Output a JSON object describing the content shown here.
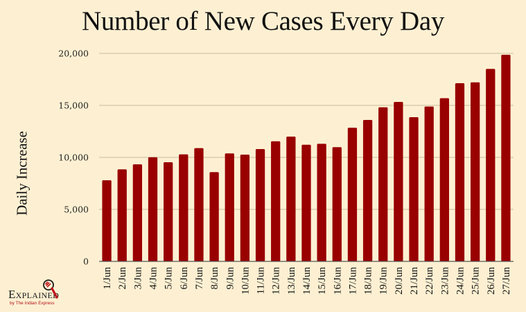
{
  "chart_data": {
    "type": "bar",
    "title": "Number of New Cases Every Day",
    "xlabel": "",
    "ylabel": "Daily Increase",
    "ylim": [
      0,
      20000
    ],
    "yticks": [
      0,
      5000,
      10000,
      15000,
      20000
    ],
    "ytick_labels": [
      "0",
      "5,000",
      "10,000",
      "15,000",
      "20,000"
    ],
    "grid": true,
    "categories": [
      "1/Jun",
      "2/Jun",
      "3/Jun",
      "4/Jun",
      "5/Jun",
      "6/Jun",
      "7/Jun",
      "8/Jun",
      "9/Jun",
      "10/Jun",
      "11/Jun",
      "12/Jun",
      "13/Jun",
      "14/Jun",
      "15/Jun",
      "16/Jun",
      "17/Jun",
      "18/Jun",
      "19/Jun",
      "20/Jun",
      "21/Jun",
      "22/Jun",
      "23/Jun",
      "24/Jun",
      "25/Jun",
      "26/Jun",
      "27/Jun"
    ],
    "values": [
      7800,
      8850,
      9330,
      10020,
      9530,
      10290,
      10890,
      8580,
      10380,
      10270,
      10800,
      11550,
      12000,
      11220,
      11310,
      10980,
      12850,
      13600,
      14820,
      15330,
      13870,
      14890,
      15690,
      17130,
      17220,
      18510,
      19870
    ],
    "bar_color": "#990000",
    "background_color": "#fdf0d2"
  },
  "branding": {
    "logo_text": "Explained",
    "logo_subtext": "by The Indian Express",
    "logo_icon": "magnifier-icon"
  }
}
